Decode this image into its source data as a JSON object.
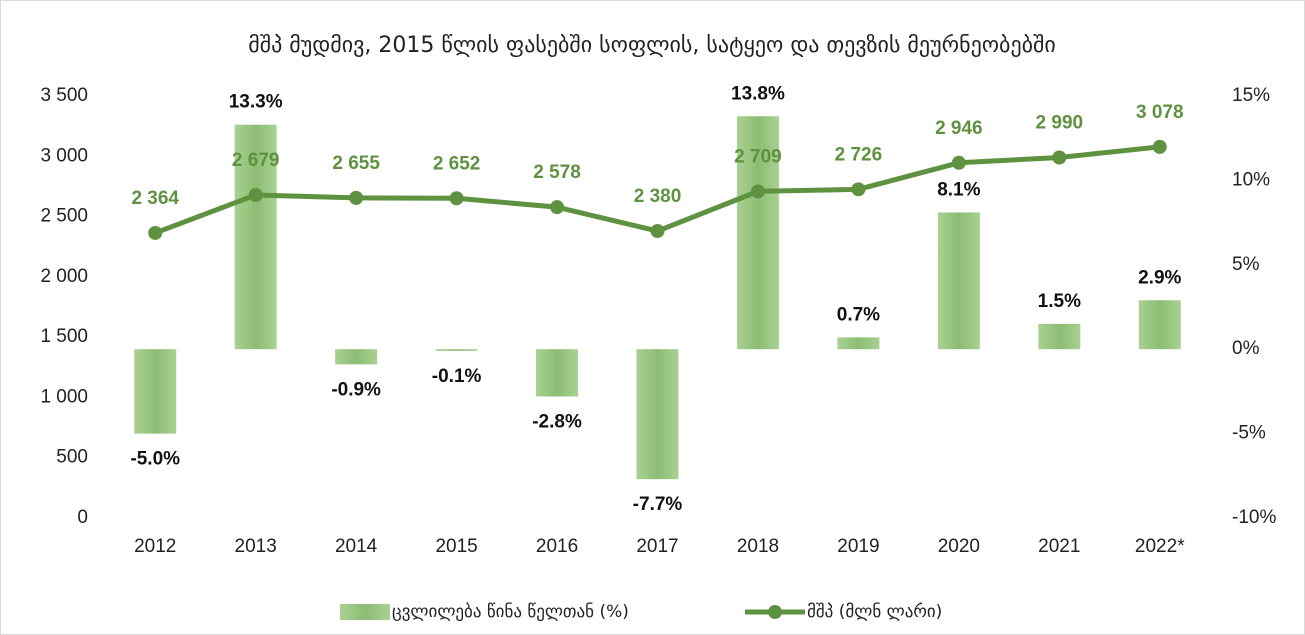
{
  "chart_data": {
    "type": "bar",
    "title": "მშპ მუდმივ, 2015 წლის ფასებში სოფლის, სატყეო და თევზის მეურნეობებში",
    "categories": [
      "2012",
      "2013",
      "2014",
      "2015",
      "2016",
      "2017",
      "2018",
      "2019",
      "2020",
      "2021",
      "2022*"
    ],
    "series": [
      {
        "name": "ცვლილება წინა წელთან (%)",
        "type": "bar",
        "axis": "y2",
        "color": "#93c47d",
        "values": [
          -5.0,
          13.3,
          -0.9,
          -0.1,
          -2.8,
          -7.7,
          13.8,
          0.7,
          8.1,
          1.5,
          2.9
        ],
        "value_labels": [
          "-5.0%",
          "13.3%",
          "-0.9%",
          "-0.1%",
          "-2.8%",
          "-7.7%",
          "13.8%",
          "0.7%",
          "8.1%",
          "1.5%",
          "2.9%"
        ]
      },
      {
        "name": "მშპ (მლნ ლარი)",
        "type": "line",
        "axis": "y",
        "color": "#5f9240",
        "values": [
          2364,
          2679,
          2655,
          2652,
          2578,
          2380,
          2709,
          2726,
          2946,
          2990,
          3078
        ],
        "value_labels": [
          "2 364",
          "2 679",
          "2 655",
          "2 652",
          "2 578",
          "2 380",
          "2 709",
          "2 726",
          "2 946",
          "2 990",
          "3 078"
        ]
      }
    ],
    "ylim": [
      0,
      3500
    ],
    "yticks": [
      0,
      {
        "value": 500,
        "label": "500"
      },
      {
        "value": 1000,
        "label": "1 000"
      },
      {
        "value": 1500,
        "label": "1 500"
      },
      {
        "value": 2000,
        "label": "2 000"
      },
      {
        "value": 2500,
        "label": "2 500"
      },
      {
        "value": 3000,
        "label": "3 000"
      },
      {
        "value": 3500,
        "label": "3 500"
      }
    ],
    "y2lim": [
      -10,
      15
    ],
    "y2ticks": [
      {
        "value": -10,
        "label": "-10%"
      },
      {
        "value": -5,
        "label": "-5%"
      },
      {
        "value": 0,
        "label": "0%"
      },
      {
        "value": 5,
        "label": "5%"
      },
      {
        "value": 10,
        "label": "10%"
      },
      {
        "value": 15,
        "label": "15%"
      }
    ],
    "legend": "bottom"
  }
}
